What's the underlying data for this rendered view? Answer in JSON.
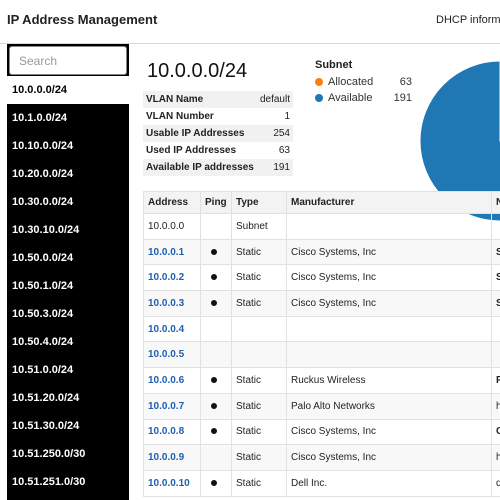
{
  "header": {
    "title": "IP Address Management",
    "right_link": "DHCP informat"
  },
  "sidebar": {
    "search_placeholder": "Search",
    "subnets": [
      {
        "label": "10.0.0.0/24",
        "active": true
      },
      {
        "label": "10.1.0.0/24"
      },
      {
        "label": "10.10.0.0/24"
      },
      {
        "label": "10.20.0.0/24"
      },
      {
        "label": "10.30.0.0/24"
      },
      {
        "label": "10.30.10.0/24"
      },
      {
        "label": "10.50.0.0/24"
      },
      {
        "label": "10.50.1.0/24"
      },
      {
        "label": "10.50.3.0/24"
      },
      {
        "label": "10.50.4.0/24"
      },
      {
        "label": "10.51.0.0/24"
      },
      {
        "label": "10.51.20.0/24"
      },
      {
        "label": "10.51.30.0/24"
      },
      {
        "label": "10.51.250.0/30"
      },
      {
        "label": "10.51.251.0/30"
      }
    ]
  },
  "subnet": {
    "title": "10.0.0.0/24",
    "info": [
      {
        "label": "VLAN Name",
        "value": "default"
      },
      {
        "label": "VLAN Number",
        "value": "1"
      },
      {
        "label": "Usable IP Addresses",
        "value": "254"
      },
      {
        "label": "Used IP Addresses",
        "value": "63"
      },
      {
        "label": "Available IP addresses",
        "value": "191"
      }
    ]
  },
  "chart_data": {
    "type": "pie",
    "title": "Subnet",
    "categories": [
      "Allocated",
      "Available"
    ],
    "values": [
      63,
      191
    ],
    "colors": [
      "#ff7f0e",
      "#1f77b4"
    ],
    "legend_position": "left"
  },
  "table": {
    "columns": [
      "Address",
      "Ping",
      "Type",
      "Manufacturer",
      "N"
    ],
    "rows": [
      {
        "address": "10.0.0.0",
        "ping": false,
        "type": "Subnet",
        "manufacturer": "",
        "name": "",
        "link": false
      },
      {
        "address": "10.0.0.1",
        "ping": true,
        "type": "Static",
        "manufacturer": "Cisco Systems, Inc",
        "name": "S",
        "link": true
      },
      {
        "address": "10.0.0.2",
        "ping": true,
        "type": "Static",
        "manufacturer": "Cisco Systems, Inc",
        "name": "S",
        "link": true
      },
      {
        "address": "10.0.0.3",
        "ping": true,
        "type": "Static",
        "manufacturer": "Cisco Systems, Inc",
        "name": "S",
        "link": true
      },
      {
        "address": "10.0.0.4",
        "ping": false,
        "type": "",
        "manufacturer": "",
        "name": "",
        "link": true
      },
      {
        "address": "10.0.0.5",
        "ping": false,
        "type": "",
        "manufacturer": "",
        "name": "",
        "link": true
      },
      {
        "address": "10.0.0.6",
        "ping": true,
        "type": "Static",
        "manufacturer": "Ruckus Wireless",
        "name": "R",
        "link": true
      },
      {
        "address": "10.0.0.7",
        "ping": true,
        "type": "Static",
        "manufacturer": "Palo Alto Networks",
        "name": "h",
        "link": true
      },
      {
        "address": "10.0.0.8",
        "ping": true,
        "type": "Static",
        "manufacturer": "Cisco Systems, Inc",
        "name": "C",
        "link": true
      },
      {
        "address": "10.0.0.9",
        "ping": false,
        "type": "Static",
        "manufacturer": "Cisco Systems, Inc",
        "name": "h",
        "link": true
      },
      {
        "address": "10.0.0.10",
        "ping": true,
        "type": "Static",
        "manufacturer": "Dell Inc.",
        "name": "d",
        "link": true
      }
    ]
  }
}
